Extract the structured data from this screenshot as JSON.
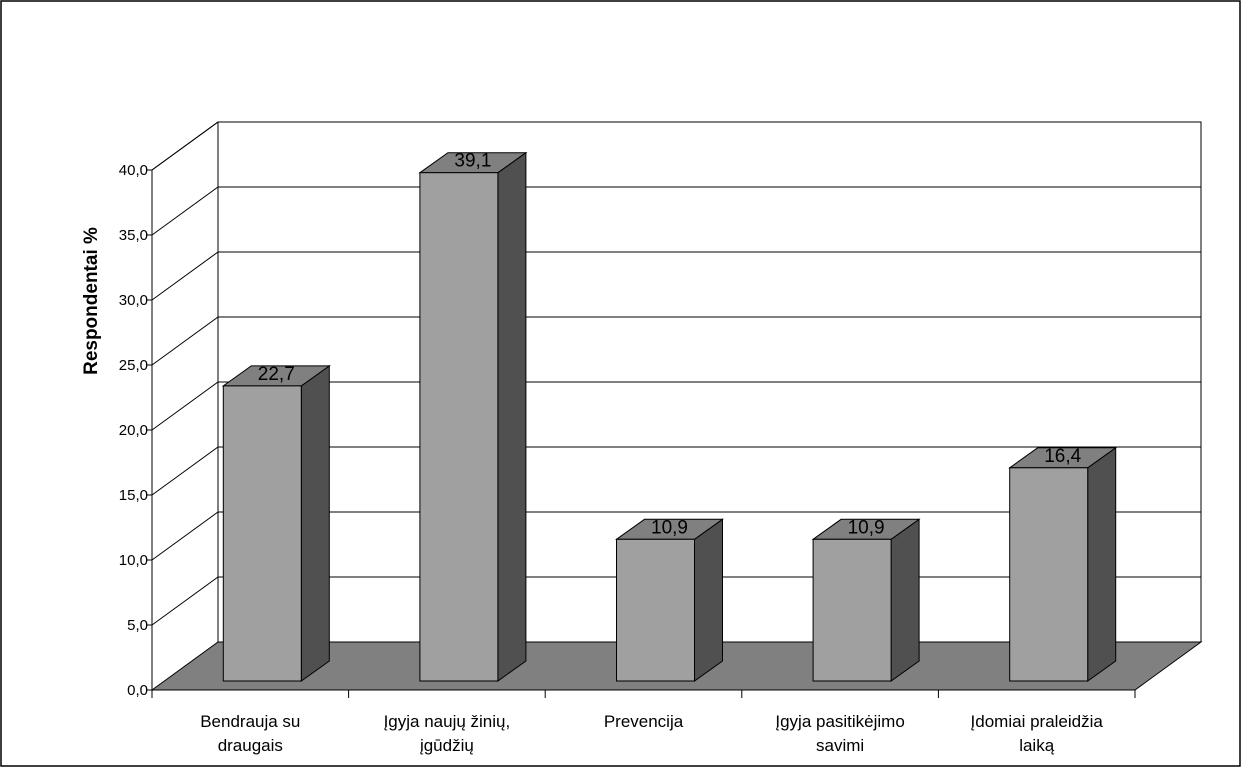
{
  "chart_data": {
    "type": "bar",
    "title": "",
    "xlabel": "",
    "ylabel": "Respondentai %",
    "ylim": [
      0,
      40
    ],
    "ytick_step": 5,
    "ytick_labels": [
      "0,0",
      "5,0",
      "10,0",
      "15,0",
      "20,0",
      "25,0",
      "30,0",
      "35,0",
      "40,0"
    ],
    "categories": [
      [
        "Bendrauja su",
        "draugais"
      ],
      [
        "Įgyja naujų žinių,",
        "įgūdžių"
      ],
      [
        "Prevencija"
      ],
      [
        "Įgyja pasitikėjimo",
        "savimi"
      ],
      [
        "Įdomiai praleidžia",
        "laiką"
      ]
    ],
    "values": [
      22.7,
      39.1,
      10.9,
      10.9,
      16.4
    ],
    "value_labels": [
      "22,7",
      "39,1",
      "10,9",
      "10,9",
      "16,4"
    ],
    "grid": true,
    "legend": "none",
    "colors": {
      "bar_front": "#a0a0a0",
      "bar_side": "#505050",
      "bar_top": "#808080",
      "floor": "#808080"
    }
  }
}
